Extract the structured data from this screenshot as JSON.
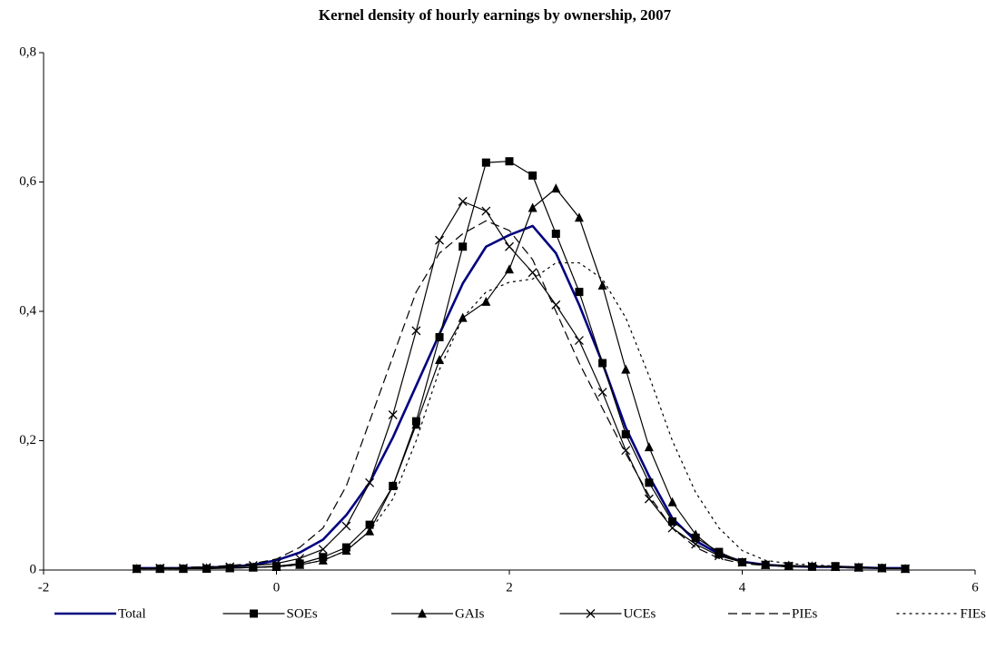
{
  "chart_data": {
    "type": "line",
    "title": "Kernel density of hourly earnings by ownership, 2007",
    "x": [
      -1.2,
      -1.0,
      -0.8,
      -0.6,
      -0.4,
      -0.2,
      0.0,
      0.2,
      0.4,
      0.6,
      0.8,
      1.0,
      1.2,
      1.4,
      1.6,
      1.8,
      2.0,
      2.2,
      2.4,
      2.6,
      2.8,
      3.0,
      3.2,
      3.4,
      3.6,
      3.8,
      4.0,
      4.2,
      4.4,
      4.6,
      4.8,
      5.0,
      5.2,
      5.4
    ],
    "series": [
      {
        "name": "Total",
        "color": "#000080",
        "marker": "none",
        "dash": "solid",
        "values": [
          0.003,
          0.003,
          0.003,
          0.004,
          0.005,
          0.008,
          0.015,
          0.027,
          0.047,
          0.085,
          0.135,
          0.205,
          0.285,
          0.365,
          0.443,
          0.5,
          0.518,
          0.532,
          0.49,
          0.41,
          0.32,
          0.22,
          0.145,
          0.08,
          0.045,
          0.025,
          0.013,
          0.008,
          0.006,
          0.005,
          0.005,
          0.004,
          0.003,
          0.003
        ]
      },
      {
        "name": "SOEs",
        "color": "#000000",
        "marker": "square",
        "dash": "solid",
        "values": [
          0.002,
          0.002,
          0.002,
          0.002,
          0.003,
          0.004,
          0.006,
          0.01,
          0.02,
          0.035,
          0.07,
          0.13,
          0.23,
          0.36,
          0.5,
          0.63,
          0.632,
          0.61,
          0.52,
          0.43,
          0.32,
          0.21,
          0.135,
          0.075,
          0.05,
          0.028,
          0.012,
          0.008,
          0.006,
          0.005,
          0.006,
          0.004,
          0.003,
          0.002
        ]
      },
      {
        "name": "GAIs",
        "color": "#000000",
        "marker": "triangle",
        "dash": "solid",
        "values": [
          0.002,
          0.002,
          0.002,
          0.003,
          0.003,
          0.004,
          0.005,
          0.008,
          0.015,
          0.03,
          0.06,
          0.13,
          0.225,
          0.325,
          0.39,
          0.415,
          0.465,
          0.56,
          0.59,
          0.545,
          0.44,
          0.31,
          0.19,
          0.105,
          0.055,
          0.025,
          0.012,
          0.008,
          0.007,
          0.006,
          0.005,
          0.004,
          0.003,
          0.002
        ]
      },
      {
        "name": "UCEs",
        "color": "#000000",
        "marker": "x",
        "dash": "solid",
        "values": [
          0.002,
          0.003,
          0.003,
          0.004,
          0.005,
          0.007,
          0.01,
          0.018,
          0.032,
          0.068,
          0.135,
          0.24,
          0.37,
          0.51,
          0.57,
          0.555,
          0.5,
          0.46,
          0.41,
          0.355,
          0.275,
          0.185,
          0.11,
          0.065,
          0.04,
          0.022,
          0.012,
          0.008,
          0.006,
          0.006,
          0.005,
          0.004,
          0.003,
          0.002
        ]
      },
      {
        "name": "PIEs",
        "color": "#000000",
        "marker": "none",
        "dash": "dashed",
        "values": [
          0.003,
          0.003,
          0.004,
          0.005,
          0.007,
          0.01,
          0.017,
          0.035,
          0.065,
          0.13,
          0.23,
          0.33,
          0.43,
          0.49,
          0.52,
          0.54,
          0.525,
          0.48,
          0.4,
          0.32,
          0.25,
          0.18,
          0.115,
          0.065,
          0.035,
          0.018,
          0.01,
          0.007,
          0.005,
          0.005,
          0.004,
          0.003,
          0.003,
          0.002
        ]
      },
      {
        "name": "FIEs",
        "color": "#000000",
        "marker": "none",
        "dash": "dotted",
        "values": [
          0.002,
          0.002,
          0.002,
          0.003,
          0.003,
          0.004,
          0.005,
          0.008,
          0.015,
          0.03,
          0.06,
          0.11,
          0.2,
          0.31,
          0.39,
          0.43,
          0.445,
          0.45,
          0.475,
          0.475,
          0.45,
          0.39,
          0.3,
          0.2,
          0.12,
          0.065,
          0.03,
          0.015,
          0.01,
          0.008,
          0.006,
          0.004,
          0.003,
          0.002
        ]
      }
    ],
    "xlim": [
      -2,
      6
    ],
    "xticks": [
      -2,
      0,
      2,
      4,
      6
    ],
    "ylim": [
      0,
      0.8
    ],
    "yticks": [
      0,
      {
        "value": 0.2,
        "label": "0,2"
      },
      {
        "value": 0.4,
        "label": "0,4"
      },
      {
        "value": 0.6,
        "label": "0,6"
      },
      {
        "value": 0.8,
        "label": "0,8"
      }
    ],
    "grid": false,
    "legend": "bottom"
  }
}
